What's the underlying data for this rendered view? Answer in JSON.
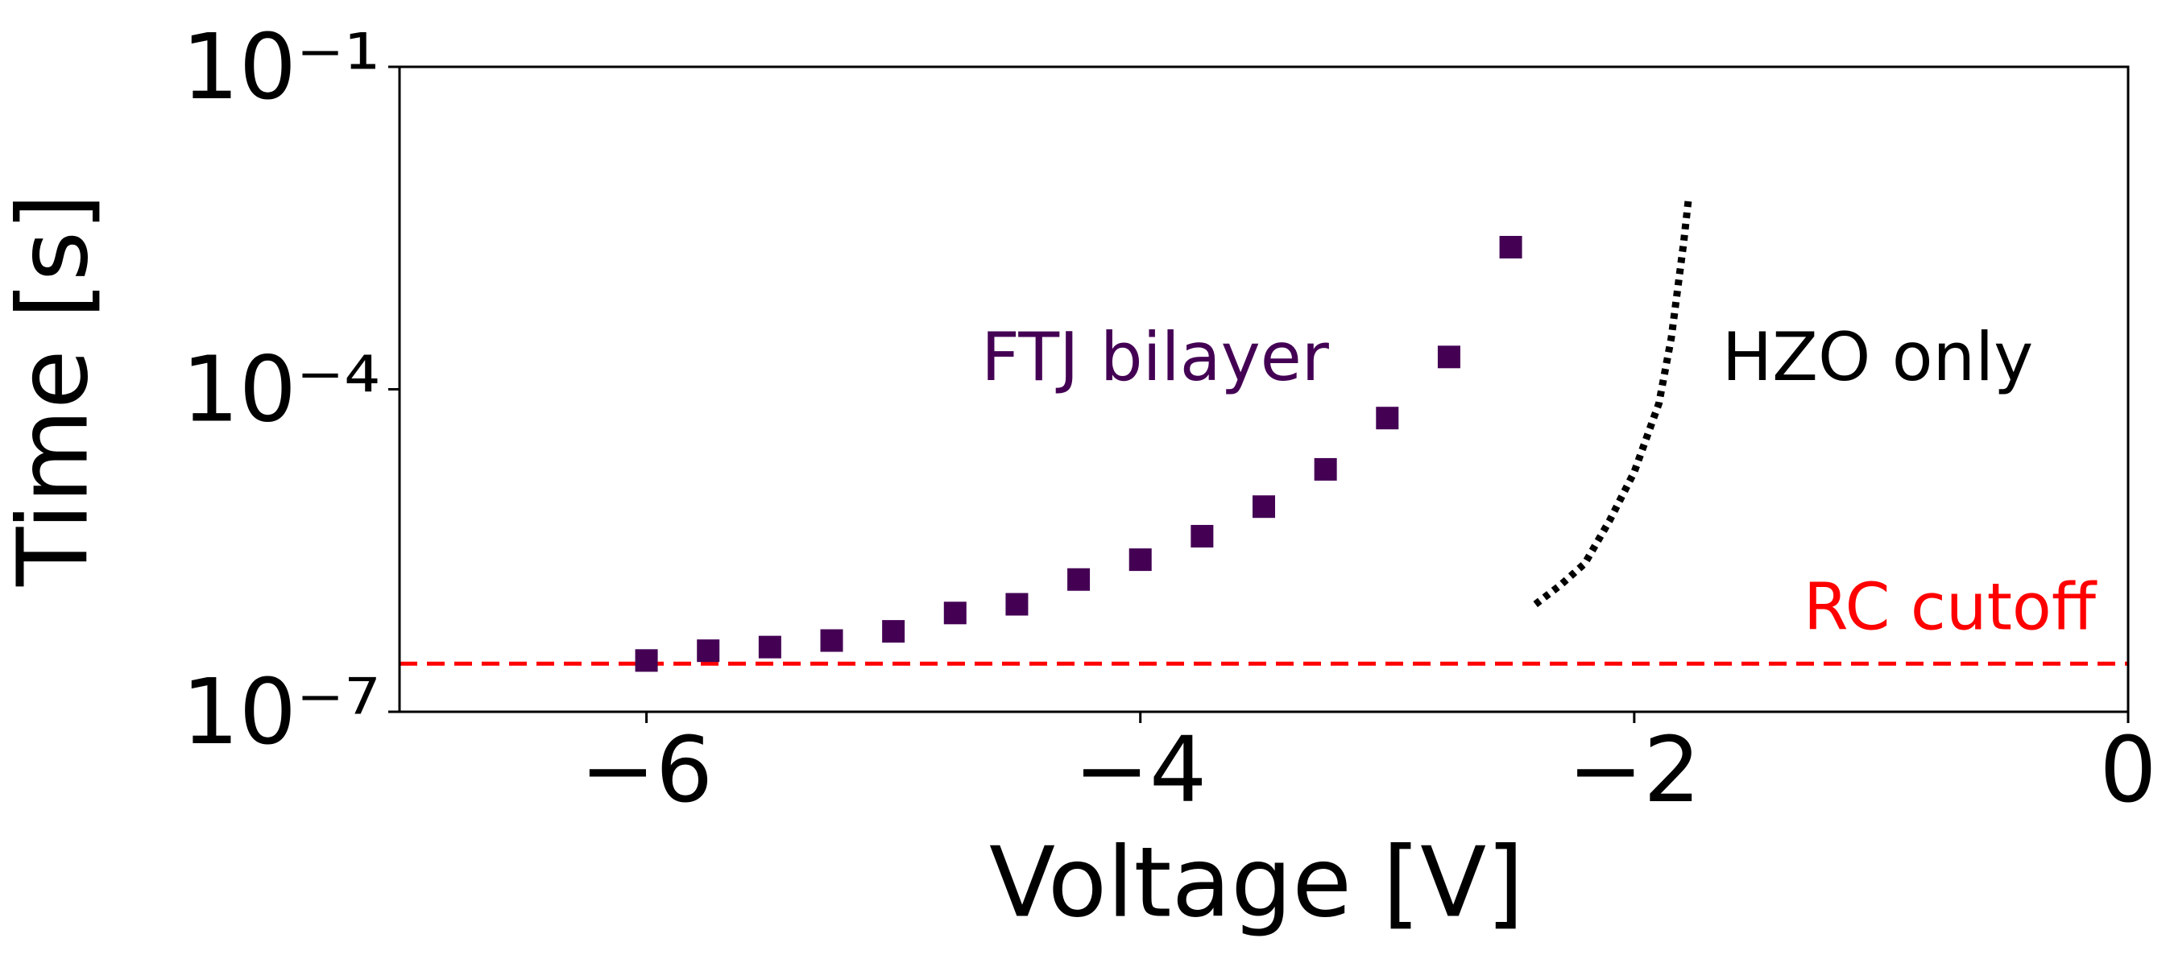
{
  "chart_data": {
    "type": "scatter",
    "x_label": "Voltage [V]",
    "y_label": "Time [s]",
    "xlim": [
      -7,
      0
    ],
    "xticks": [
      {
        "value": -6,
        "label": "−6"
      },
      {
        "value": -4,
        "label": "−4"
      },
      {
        "value": -2,
        "label": "−2"
      },
      0
    ],
    "ylim": [
      1e-07,
      0.1
    ],
    "y_scale": "log",
    "yticks": [
      {
        "value": 1e-07,
        "label": "10⁻⁷"
      },
      {
        "value": 0.0001,
        "label": "10⁻⁴"
      },
      {
        "value": 0.1,
        "label": "10⁻¹"
      }
    ],
    "series": [
      {
        "name": "FTJ bilayer",
        "color": "#440154",
        "marker": "square",
        "x": [
          -6,
          -5.75,
          -5.5,
          -5.25,
          -5,
          -4.75,
          -4.5,
          -4.25,
          -4,
          -3.75,
          -3.5,
          -3.25,
          -3,
          -2.75,
          -2.5
        ],
        "values": [
          3e-07,
          3.7e-07,
          4e-07,
          4.6e-07,
          5.6e-07,
          8.3e-07,
          1e-06,
          1.7e-06,
          2.6e-06,
          4.3e-06,
          8.1e-06,
          1.8e-05,
          5.4e-05,
          0.0002,
          0.0021
        ]
      },
      {
        "name": "HZO only",
        "color": "#000000",
        "line_style": "dotted",
        "x": [
          -2.4,
          -2.3,
          -2.2,
          -2.1,
          -2.0,
          -1.9,
          -1.85,
          -1.8,
          -1.78
        ],
        "values": [
          1e-06,
          1.5e-06,
          2.4e-06,
          6e-06,
          1.7e-05,
          7.4e-05,
          0.0003,
          0.0023,
          0.006
        ]
      }
    ],
    "reference_line": {
      "label": "RC cutoff",
      "value": 2.8e-07,
      "color": "#ff0000",
      "line_style": "dashed"
    }
  }
}
